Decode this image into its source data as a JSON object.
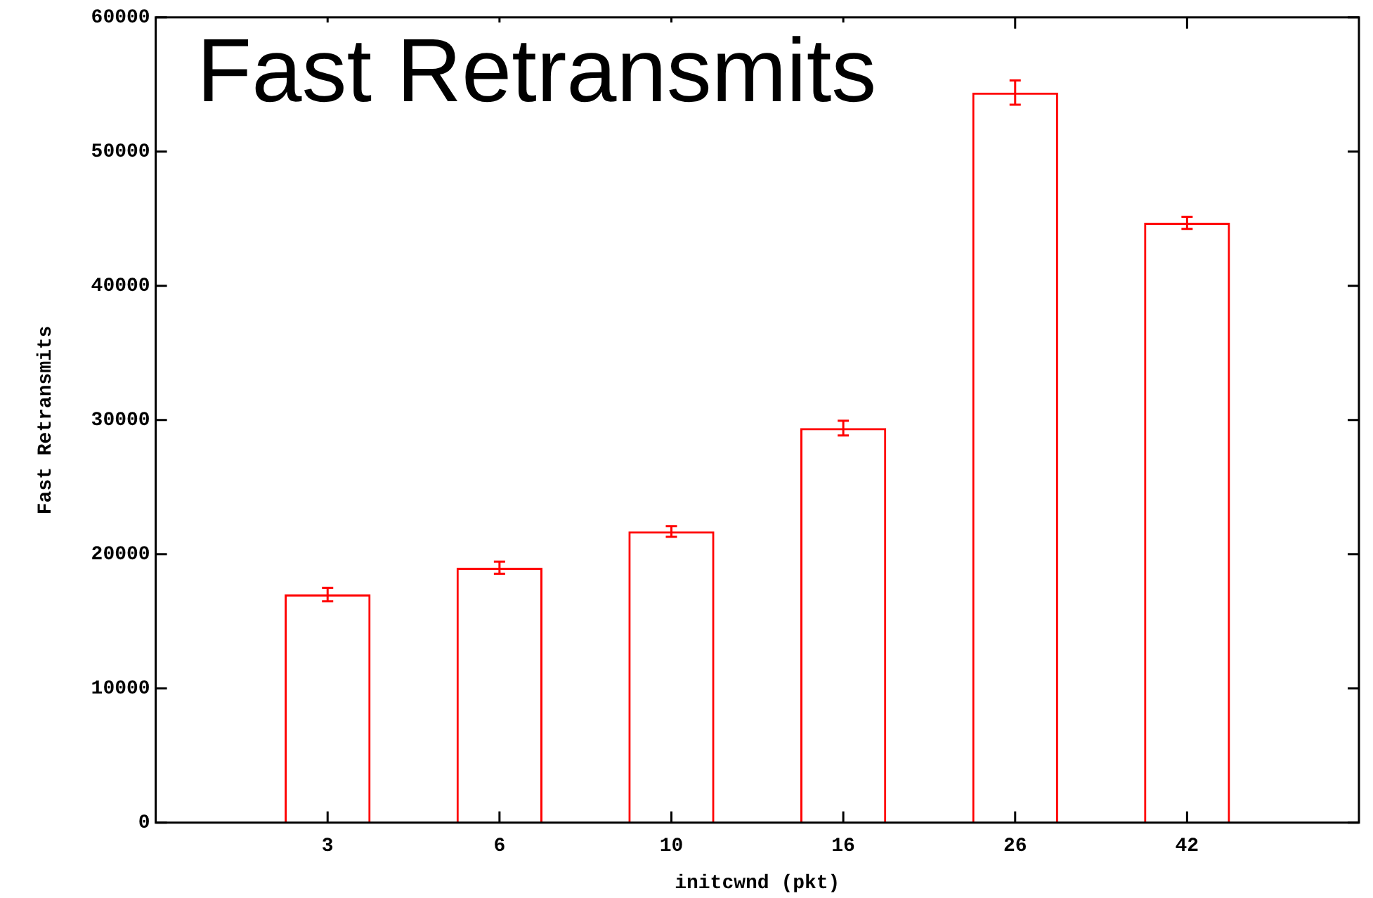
{
  "chart_data": {
    "type": "bar",
    "title": "Fast Retransmits",
    "xlabel": "initcwnd (pkt)",
    "ylabel": "Fast Retransmits",
    "categories": [
      "3",
      "6",
      "10",
      "16",
      "26",
      "42"
    ],
    "values": [
      17000,
      19000,
      21700,
      29400,
      54400,
      44700
    ],
    "errors": [
      500,
      450,
      400,
      550,
      900,
      450
    ],
    "color": "#ff0000",
    "ylim": [
      0,
      60000
    ],
    "yticks": [
      0,
      10000,
      20000,
      30000,
      40000,
      50000,
      60000
    ],
    "grid": false
  }
}
